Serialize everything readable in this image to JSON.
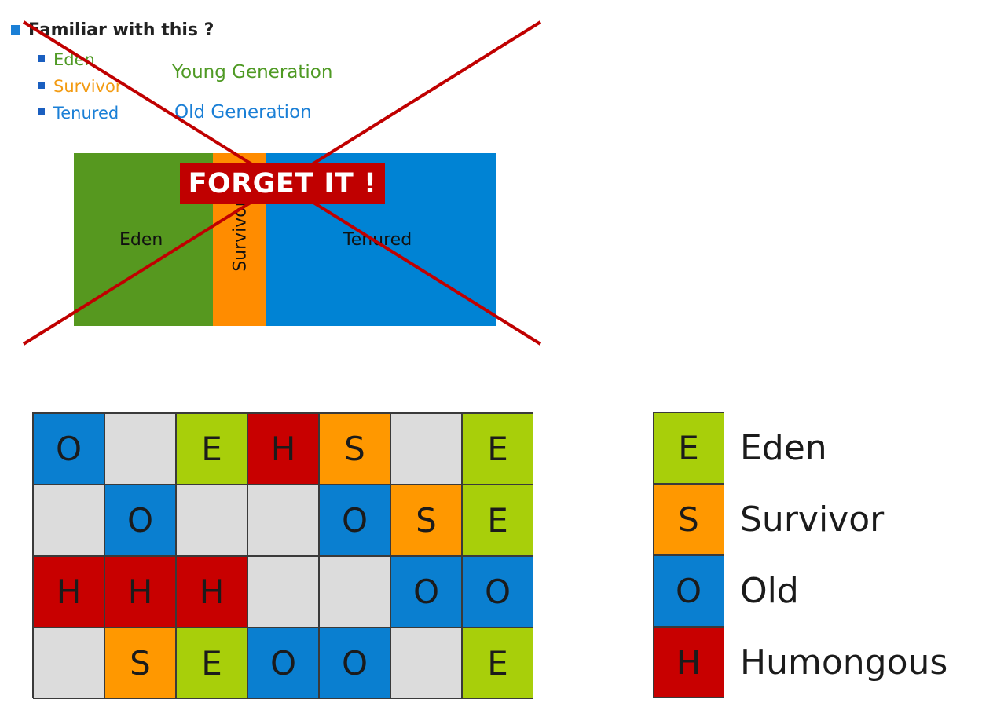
{
  "heading": "Familiar with this ?",
  "bullets": [
    {
      "label": "Eden",
      "color": "#4f9a24"
    },
    {
      "label": "Survivor",
      "color": "#f39b12"
    },
    {
      "label": "Tenured",
      "color": "#1a7fd6"
    }
  ],
  "generations": {
    "young": "Young Generation",
    "old": "Old Generation",
    "young_color": "#4f9a24",
    "old_color": "#1a7fd6"
  },
  "legacy_layout": {
    "eden_label": "Eden",
    "survivor_label": "Survivor",
    "tenured_label": "Tenured",
    "eden_color": "#56981f",
    "survivor_color": "#ff8c00",
    "tenured_color": "#0083d4"
  },
  "stamp": {
    "text": "FORGET IT !",
    "color": "#c00000"
  },
  "region_colors": {
    "E": "#a8cf0a",
    "S": "#ff9800",
    "O": "#0a7fd0",
    "H": "#c80000",
    "empty": "#dcdcdc"
  },
  "regions_grid": [
    [
      "O",
      "",
      "E",
      "H",
      "S",
      "",
      "E"
    ],
    [
      "",
      "O",
      "",
      "",
      "O",
      "S",
      "E"
    ],
    [
      "H",
      "H",
      "H",
      "",
      "",
      "O",
      "O"
    ],
    [
      "",
      "S",
      "E",
      "O",
      "O",
      "",
      "E"
    ]
  ],
  "legend": [
    {
      "letter": "E",
      "label": "Eden"
    },
    {
      "letter": "S",
      "label": "Survivor"
    },
    {
      "letter": "O",
      "label": "Old"
    },
    {
      "letter": "H",
      "label": "Humongous"
    }
  ]
}
